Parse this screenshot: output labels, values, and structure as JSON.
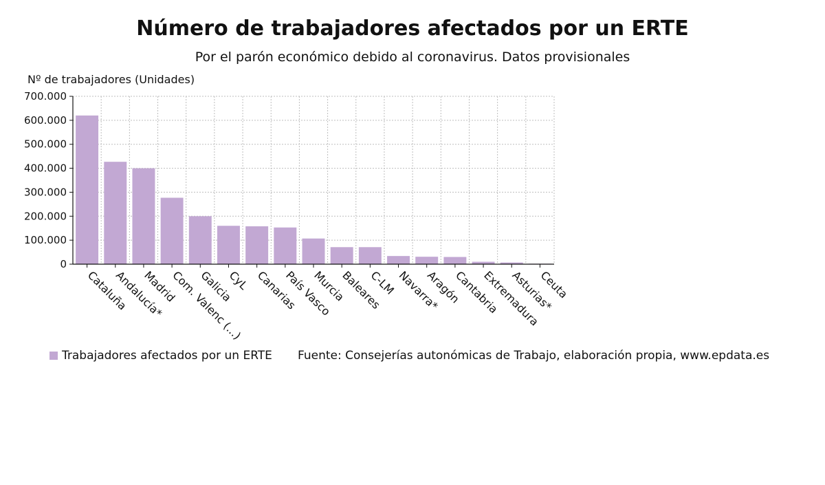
{
  "chart_data": {
    "type": "bar",
    "title": "Número de trabajadores afectados por un ERTE",
    "subtitle": "Por el parón económico debido al coronavirus. Datos provisionales",
    "ylabel": "Nº de trabajadores (Unidades)",
    "xlabel": "",
    "ylim": [
      0,
      700000
    ],
    "yticks": [
      0,
      100000,
      200000,
      300000,
      400000,
      500000,
      600000,
      700000
    ],
    "ytick_labels": [
      "0",
      "100.000",
      "200.000",
      "300.000",
      "400.000",
      "500.000",
      "600.000",
      "700.000"
    ],
    "grid": true,
    "legend_position": "bottom-left",
    "categories": [
      "Cataluña",
      "Andalucía*",
      "Madrid",
      "Com. Valenc (...)",
      "Galicia",
      "CyL",
      "Canarias",
      "País Vasco",
      "Murcia",
      "Baleares",
      "C-LM",
      "Navarra*",
      "Aragón",
      "Cantabria",
      "Extremadura",
      "Asturias*",
      "Ceuta"
    ],
    "series": [
      {
        "name": "Trabajadores afectados por un ERTE",
        "color": "#c2a8d3",
        "values": [
          620000,
          427000,
          400000,
          277000,
          200000,
          160000,
          158000,
          153000,
          107000,
          71000,
          71000,
          34000,
          31000,
          30000,
          10000,
          7000,
          2000
        ]
      }
    ]
  },
  "legend": {
    "label": "Trabajadores afectados por un ERTE",
    "color": "#c2a8d3"
  },
  "source": "Fuente: Consejerías autonómicas de Trabajo, elaboración propia, www.epdata.es"
}
